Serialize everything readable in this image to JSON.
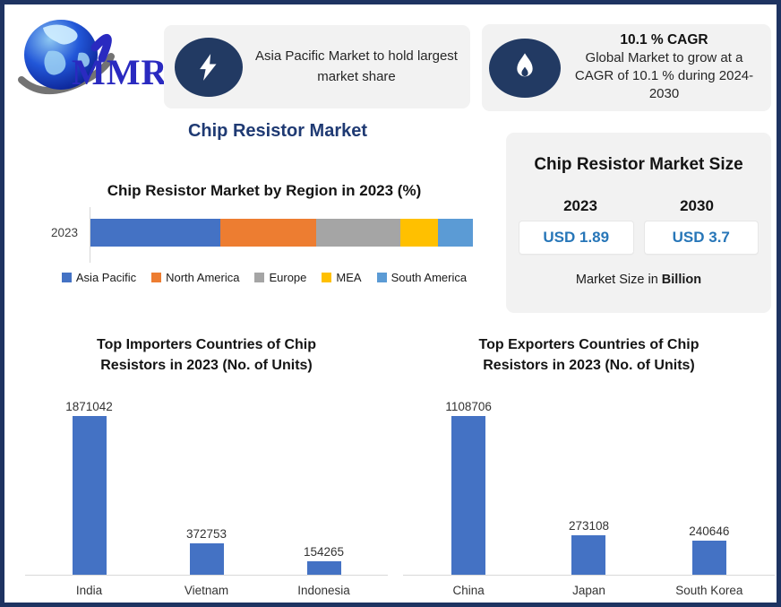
{
  "page_title": "Chip Resistor Market",
  "logo": {
    "text": "MMR"
  },
  "callouts": [
    {
      "icon": "lightning-icon",
      "text": "Asia Pacific Market to hold largest market share"
    },
    {
      "icon": "flame-icon",
      "title": "10.1 % CAGR",
      "text": "Global Market to grow at a CAGR of 10.1 % during 2024-2030"
    }
  ],
  "market_size_card": {
    "title": "Chip Resistor Market Size",
    "columns": [
      {
        "year": "2023",
        "value": "USD 1.89"
      },
      {
        "year": "2030",
        "value": "USD 3.7"
      }
    ],
    "footer_prefix": "Market Size in ",
    "footer_bold": "Billion",
    "value_color": "#2776b8"
  },
  "chart_data": [
    {
      "type": "bar",
      "orientation": "horizontal-stacked",
      "title": "Chip Resistor Market by Region in 2023 (%)",
      "category": "2023",
      "x_range": [
        0,
        100
      ],
      "legend_position": "bottom",
      "series": [
        {
          "name": "Asia Pacific",
          "value": 34,
          "color": "#4472c4"
        },
        {
          "name": "North America",
          "value": 25,
          "color": "#ed7d31"
        },
        {
          "name": "Europe",
          "value": 22,
          "color": "#a5a5a5"
        },
        {
          "name": "MEA",
          "value": 10,
          "color": "#ffc000"
        },
        {
          "name": "South America",
          "value": 9,
          "color": "#5b9bd5"
        }
      ]
    },
    {
      "type": "bar",
      "title": "Top Importers Countries of Chip Resistors in 2023 (No. of Units)",
      "categories": [
        "India",
        "Vietnam",
        "Indonesia"
      ],
      "values": [
        1871042,
        372753,
        154265
      ],
      "bar_color": "#4472c4",
      "value_labels": true
    },
    {
      "type": "bar",
      "title": "Top Exporters Countries of Chip Resistors in 2023 (No. of Units)",
      "categories": [
        "China",
        "Japan",
        "South Korea"
      ],
      "values": [
        1108706,
        273108,
        240646
      ],
      "bar_color": "#4472c4",
      "value_labels": true
    }
  ],
  "colors": {
    "frame_border": "#1e3361",
    "callout_bg": "#f2f2f2",
    "icon_navy": "#223a63",
    "title_navy": "#1f3a73",
    "bar_blue": "#4472c4"
  }
}
